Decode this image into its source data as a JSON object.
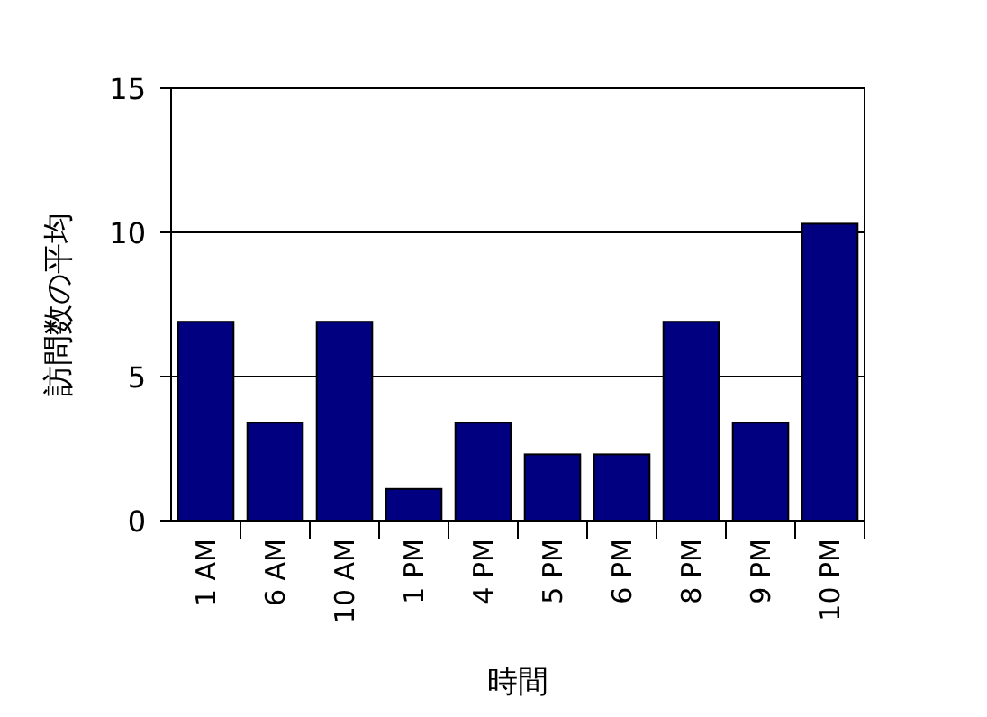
{
  "chart_data": {
    "type": "bar",
    "xlabel": "時間",
    "ylabel": "訪問数の平均",
    "categories": [
      "1 AM",
      "6 AM",
      "10 AM",
      "1 PM",
      "4 PM",
      "5 PM",
      "6 PM",
      "8 PM",
      "9 PM",
      "10 PM"
    ],
    "values": [
      6.9,
      3.4,
      6.9,
      1.1,
      3.4,
      2.3,
      2.3,
      6.9,
      3.4,
      10.3
    ],
    "color": "#000080",
    "ylim": [
      0,
      15
    ],
    "yticks": [
      0,
      5,
      10,
      15
    ],
    "grid": "y"
  }
}
